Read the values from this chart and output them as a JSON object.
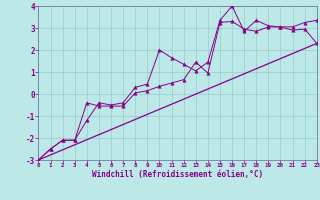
{
  "xlabel": "Windchill (Refroidissement éolien,°C)",
  "xlim": [
    0,
    23
  ],
  "ylim": [
    -3,
    4
  ],
  "xticks": [
    0,
    1,
    2,
    3,
    4,
    5,
    6,
    7,
    8,
    9,
    10,
    11,
    12,
    13,
    14,
    15,
    16,
    17,
    18,
    19,
    20,
    21,
    22,
    23
  ],
  "yticks": [
    -3,
    -2,
    -1,
    0,
    1,
    2,
    3,
    4
  ],
  "bg_color": "#bce8e8",
  "line_color": "#880088",
  "line1_x": [
    0,
    1,
    2,
    3,
    4,
    5,
    6,
    7,
    8,
    9,
    10,
    11,
    12,
    13,
    14,
    15,
    16,
    17,
    18,
    19,
    20,
    21,
    22,
    23
  ],
  "line1_y": [
    -3.0,
    -2.5,
    -2.1,
    -2.1,
    -1.2,
    -0.4,
    -0.5,
    -0.4,
    0.3,
    0.45,
    2.0,
    1.65,
    1.35,
    1.05,
    1.45,
    3.35,
    4.0,
    2.85,
    3.35,
    3.1,
    3.05,
    2.9,
    2.95,
    2.3
  ],
  "line2_x": [
    0,
    1,
    2,
    3,
    4,
    5,
    6,
    7,
    8,
    9,
    10,
    11,
    12,
    13,
    14,
    15,
    16,
    17,
    18,
    19,
    20,
    21,
    22,
    23
  ],
  "line2_y": [
    -3.0,
    -2.5,
    -2.1,
    -2.1,
    -0.4,
    -0.55,
    -0.55,
    -0.55,
    0.05,
    0.15,
    0.35,
    0.5,
    0.65,
    1.45,
    0.95,
    3.25,
    3.3,
    2.95,
    2.85,
    3.05,
    3.05,
    3.05,
    3.25,
    3.35
  ],
  "trend_x": [
    0,
    23
  ],
  "trend_y": [
    -3.0,
    2.3
  ]
}
